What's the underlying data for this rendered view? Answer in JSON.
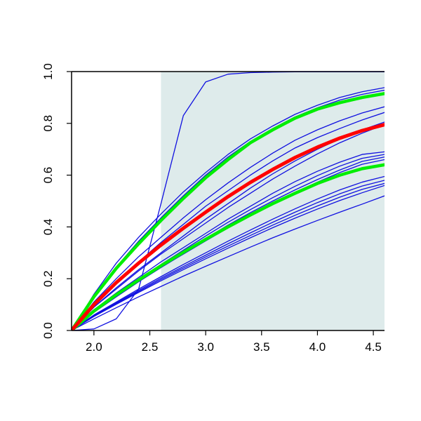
{
  "chart_data": {
    "type": "line",
    "title": "",
    "xlabel": "",
    "ylabel": "",
    "xlim": [
      1.8,
      4.6
    ],
    "ylim": [
      0.0,
      1.0
    ],
    "grid": false,
    "x_ticks": [
      "2.0",
      "2.5",
      "3.0",
      "3.5",
      "4.0",
      "4.5"
    ],
    "y_ticks": [
      "0.0",
      "0.2",
      "0.4",
      "0.6",
      "0.8",
      "1.0"
    ],
    "shaded_region": {
      "x": [
        2.6,
        4.6
      ],
      "color": "#deebeb"
    },
    "colors": {
      "blue": "#1010e0",
      "green": "#00ee00",
      "red": "#ff0000",
      "axis": "#000000"
    },
    "x": [
      1.8,
      2.0,
      2.2,
      2.4,
      2.6,
      2.8,
      3.0,
      3.2,
      3.4,
      3.6,
      3.8,
      4.0,
      4.2,
      4.4,
      4.6
    ],
    "series": [
      {
        "color": "blue",
        "width": 1.3,
        "values": [
          0.0,
          0.006,
          0.045,
          0.16,
          0.49,
          0.83,
          0.96,
          0.99,
          0.996,
          0.998,
          0.999,
          0.999,
          0.999,
          0.999,
          0.999
        ]
      },
      {
        "color": "blue",
        "width": 1.3,
        "values": [
          0.0,
          0.14,
          0.26,
          0.36,
          0.45,
          0.535,
          0.61,
          0.68,
          0.74,
          0.79,
          0.835,
          0.87,
          0.9,
          0.922,
          0.938
        ]
      },
      {
        "color": "blue",
        "width": 1.3,
        "values": [
          0.0,
          0.13,
          0.245,
          0.345,
          0.435,
          0.52,
          0.6,
          0.67,
          0.73,
          0.78,
          0.825,
          0.86,
          0.89,
          0.912,
          0.928
        ]
      },
      {
        "color": "blue",
        "width": 1.3,
        "values": [
          0.0,
          0.11,
          0.2,
          0.285,
          0.36,
          0.435,
          0.505,
          0.57,
          0.63,
          0.685,
          0.735,
          0.775,
          0.81,
          0.84,
          0.864
        ]
      },
      {
        "color": "blue",
        "width": 1.3,
        "values": [
          0.0,
          0.1,
          0.185,
          0.265,
          0.34,
          0.41,
          0.48,
          0.54,
          0.6,
          0.655,
          0.705,
          0.745,
          0.78,
          0.813,
          0.842
        ]
      },
      {
        "color": "blue",
        "width": 1.3,
        "values": [
          0.0,
          0.09,
          0.165,
          0.235,
          0.3,
          0.365,
          0.43,
          0.49,
          0.55,
          0.605,
          0.655,
          0.7,
          0.74,
          0.775,
          0.805
        ]
      },
      {
        "color": "blue",
        "width": 1.3,
        "values": [
          0.0,
          0.09,
          0.16,
          0.23,
          0.295,
          0.355,
          0.415,
          0.475,
          0.53,
          0.585,
          0.635,
          0.682,
          0.725,
          0.762,
          0.795
        ]
      },
      {
        "color": "blue",
        "width": 1.3,
        "values": [
          0.0,
          0.08,
          0.145,
          0.205,
          0.265,
          0.32,
          0.375,
          0.43,
          0.48,
          0.53,
          0.575,
          0.615,
          0.65,
          0.68,
          0.69
        ]
      },
      {
        "color": "blue",
        "width": 1.3,
        "values": [
          0.0,
          0.075,
          0.138,
          0.198,
          0.255,
          0.31,
          0.365,
          0.418,
          0.467,
          0.513,
          0.557,
          0.598,
          0.635,
          0.665,
          0.68
        ]
      },
      {
        "color": "blue",
        "width": 1.3,
        "values": [
          0.0,
          0.072,
          0.134,
          0.193,
          0.248,
          0.302,
          0.355,
          0.407,
          0.455,
          0.5,
          0.543,
          0.583,
          0.62,
          0.653,
          0.67
        ]
      },
      {
        "color": "blue",
        "width": 1.3,
        "values": [
          0.0,
          0.07,
          0.13,
          0.188,
          0.243,
          0.295,
          0.346,
          0.396,
          0.444,
          0.49,
          0.533,
          0.573,
          0.61,
          0.642,
          0.66
        ]
      },
      {
        "color": "blue",
        "width": 1.3,
        "values": [
          0.0,
          0.06,
          0.11,
          0.16,
          0.208,
          0.255,
          0.3,
          0.345,
          0.388,
          0.43,
          0.47,
          0.508,
          0.543,
          0.573,
          0.595
        ]
      },
      {
        "color": "blue",
        "width": 1.3,
        "values": [
          0.0,
          0.058,
          0.107,
          0.155,
          0.202,
          0.247,
          0.291,
          0.335,
          0.377,
          0.418,
          0.457,
          0.494,
          0.528,
          0.558,
          0.58
        ]
      },
      {
        "color": "blue",
        "width": 1.3,
        "values": [
          0.0,
          0.056,
          0.104,
          0.151,
          0.197,
          0.241,
          0.284,
          0.326,
          0.367,
          0.407,
          0.445,
          0.481,
          0.515,
          0.545,
          0.568
        ]
      },
      {
        "color": "blue",
        "width": 1.3,
        "values": [
          0.0,
          0.054,
          0.101,
          0.147,
          0.192,
          0.235,
          0.277,
          0.318,
          0.358,
          0.397,
          0.434,
          0.469,
          0.502,
          0.532,
          0.56
        ]
      },
      {
        "color": "blue",
        "width": 1.3,
        "values": [
          0.0,
          0.045,
          0.088,
          0.13,
          0.17,
          0.21,
          0.248,
          0.285,
          0.322,
          0.358,
          0.392,
          0.425,
          0.457,
          0.488,
          0.52
        ]
      },
      {
        "color": "green",
        "width": 4.5,
        "values": [
          0.0,
          0.13,
          0.24,
          0.335,
          0.425,
          0.51,
          0.59,
          0.66,
          0.725,
          0.775,
          0.82,
          0.855,
          0.88,
          0.9,
          0.915
        ]
      },
      {
        "color": "green",
        "width": 4.5,
        "values": [
          0.0,
          0.075,
          0.138,
          0.195,
          0.25,
          0.302,
          0.352,
          0.4,
          0.446,
          0.49,
          0.53,
          0.568,
          0.6,
          0.625,
          0.64
        ]
      },
      {
        "color": "red",
        "width": 5.0,
        "values": [
          0.0,
          0.1,
          0.185,
          0.26,
          0.33,
          0.395,
          0.457,
          0.517,
          0.572,
          0.622,
          0.668,
          0.708,
          0.743,
          0.772,
          0.795
        ]
      }
    ]
  }
}
